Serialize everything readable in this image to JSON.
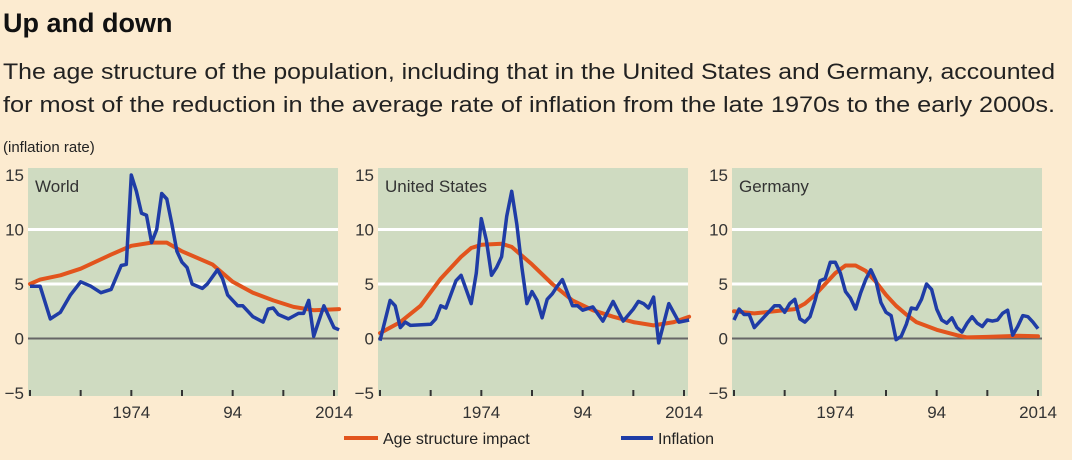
{
  "colors": {
    "background": "#fcebd0",
    "plot": "#cfdbc1",
    "age": "#e2541d",
    "inflation": "#1f3ca6",
    "grid": "#ffffff",
    "zero": "#666666"
  },
  "chart_data": {
    "type": "line",
    "title": "Up and down",
    "subtitle": [
      "The age structure of the population, including that in the United States and Germany, accounted",
      "for most of the reduction in the average rate of inflation from the late 1970s to the early 2000s."
    ],
    "ylabel": "(inflation rate)",
    "ylim": [
      -5,
      15
    ],
    "yticks": [
      "15",
      "10",
      "5",
      "0",
      "−5"
    ],
    "ytick_values": [
      15,
      10,
      5,
      0,
      -5
    ],
    "xlim": [
      1954,
      2015
    ],
    "xtick_years": [
      1954,
      1964,
      1974,
      1984,
      1994,
      2004,
      2014
    ],
    "xtick_labels": [
      {
        "year": 1974,
        "label": "1974"
      },
      {
        "year": 1994,
        "label": "94"
      },
      {
        "year": 2014,
        "label": "2014"
      }
    ],
    "grid": "horizontal at 5 and 10",
    "legend": {
      "placement": "bottom-center",
      "entries": [
        "Age structure impact",
        "Inflation"
      ]
    },
    "panels": [
      {
        "name": "World",
        "age": [
          [
            1954,
            5
          ],
          [
            1956,
            5.4
          ],
          [
            1960,
            5.8
          ],
          [
            1964,
            6.4
          ],
          [
            1970,
            7.7
          ],
          [
            1974,
            8.5
          ],
          [
            1978,
            8.8
          ],
          [
            1981,
            8.8
          ],
          [
            1984,
            8
          ],
          [
            1990,
            6.8
          ],
          [
            1994,
            5.2
          ],
          [
            1998,
            4.2
          ],
          [
            2002,
            3.5
          ],
          [
            2006,
            2.9
          ],
          [
            2010,
            2.6
          ],
          [
            2015,
            2.7
          ]
        ],
        "inflation": [
          [
            1954,
            4.8
          ],
          [
            1956,
            4.8
          ],
          [
            1958,
            1.8
          ],
          [
            1960,
            2.4
          ],
          [
            1962,
            4
          ],
          [
            1964,
            5.2
          ],
          [
            1966,
            4.8
          ],
          [
            1968,
            4.2
          ],
          [
            1970,
            4.5
          ],
          [
            1972,
            6.7
          ],
          [
            1973,
            6.8
          ],
          [
            1974,
            15
          ],
          [
            1975,
            13.5
          ],
          [
            1976,
            11.5
          ],
          [
            1977,
            11.3
          ],
          [
            1978,
            8.8
          ],
          [
            1979,
            10
          ],
          [
            1980,
            13.3
          ],
          [
            1981,
            12.8
          ],
          [
            1982,
            10.5
          ],
          [
            1983,
            8
          ],
          [
            1984,
            7
          ],
          [
            1985,
            6.5
          ],
          [
            1986,
            5
          ],
          [
            1988,
            4.6
          ],
          [
            1989,
            5
          ],
          [
            1991,
            6.3
          ],
          [
            1992,
            5.5
          ],
          [
            1993,
            4
          ],
          [
            1995,
            3
          ],
          [
            1996,
            3
          ],
          [
            1998,
            2
          ],
          [
            2000,
            1.5
          ],
          [
            2001,
            2.7
          ],
          [
            2002,
            2.8
          ],
          [
            2003,
            2.2
          ],
          [
            2005,
            1.8
          ],
          [
            2007,
            2.3
          ],
          [
            2008,
            2.3
          ],
          [
            2009,
            3.5
          ],
          [
            2010,
            0.2
          ],
          [
            2012,
            3
          ],
          [
            2014,
            1
          ],
          [
            2015,
            0.8
          ]
        ]
      },
      {
        "name": "United States",
        "age": [
          [
            1954,
            0.5
          ],
          [
            1958,
            1.5
          ],
          [
            1962,
            3
          ],
          [
            1966,
            5.5
          ],
          [
            1970,
            7.5
          ],
          [
            1972,
            8.3
          ],
          [
            1974,
            8.6
          ],
          [
            1978,
            8.7
          ],
          [
            1980,
            8.4
          ],
          [
            1984,
            6.8
          ],
          [
            1988,
            5
          ],
          [
            1992,
            3.5
          ],
          [
            1996,
            2.6
          ],
          [
            2000,
            2
          ],
          [
            2004,
            1.5
          ],
          [
            2008,
            1.2
          ],
          [
            2012,
            1.5
          ],
          [
            2015,
            2
          ]
        ],
        "inflation": [
          [
            1954,
            -0.2
          ],
          [
            1956,
            3.5
          ],
          [
            1957,
            3
          ],
          [
            1958,
            1
          ],
          [
            1959,
            1.5
          ],
          [
            1960,
            1.2
          ],
          [
            1964,
            1.3
          ],
          [
            1965,
            1.8
          ],
          [
            1966,
            3
          ],
          [
            1967,
            2.8
          ],
          [
            1969,
            5.3
          ],
          [
            1970,
            5.8
          ],
          [
            1972,
            3.2
          ],
          [
            1973,
            6
          ],
          [
            1974,
            11
          ],
          [
            1975,
            9
          ],
          [
            1976,
            5.8
          ],
          [
            1977,
            6.5
          ],
          [
            1978,
            7.5
          ],
          [
            1979,
            11.2
          ],
          [
            1980,
            13.5
          ],
          [
            1981,
            10.5
          ],
          [
            1982,
            6.5
          ],
          [
            1983,
            3.2
          ],
          [
            1984,
            4.3
          ],
          [
            1985,
            3.5
          ],
          [
            1986,
            1.9
          ],
          [
            1987,
            3.6
          ],
          [
            1988,
            4.1
          ],
          [
            1989,
            4.8
          ],
          [
            1990,
            5.4
          ],
          [
            1991,
            4.2
          ],
          [
            1992,
            3
          ],
          [
            1993,
            3
          ],
          [
            1994,
            2.6
          ],
          [
            1996,
            2.9
          ],
          [
            1998,
            1.6
          ],
          [
            2000,
            3.4
          ],
          [
            2002,
            1.6
          ],
          [
            2004,
            2.7
          ],
          [
            2005,
            3.4
          ],
          [
            2006,
            3.2
          ],
          [
            2007,
            2.8
          ],
          [
            2008,
            3.8
          ],
          [
            2009,
            -0.4
          ],
          [
            2011,
            3.2
          ],
          [
            2013,
            1.5
          ],
          [
            2015,
            1.7
          ]
        ]
      },
      {
        "name": "Germany",
        "age": [
          [
            1954,
            2.5
          ],
          [
            1958,
            2.3
          ],
          [
            1962,
            2.5
          ],
          [
            1966,
            2.7
          ],
          [
            1968,
            3.2
          ],
          [
            1970,
            4
          ],
          [
            1972,
            5
          ],
          [
            1974,
            6
          ],
          [
            1976,
            6.7
          ],
          [
            1978,
            6.7
          ],
          [
            1980,
            6.2
          ],
          [
            1982,
            5.2
          ],
          [
            1984,
            4
          ],
          [
            1986,
            3
          ],
          [
            1988,
            2.2
          ],
          [
            1990,
            1.5
          ],
          [
            1994,
            0.8
          ],
          [
            1998,
            0.3
          ],
          [
            2000,
            0.1
          ],
          [
            2004,
            0.15
          ],
          [
            2010,
            0.25
          ],
          [
            2014,
            0.2
          ]
        ],
        "inflation": [
          [
            1954,
            1.7
          ],
          [
            1955,
            2.7
          ],
          [
            1956,
            2.2
          ],
          [
            1957,
            2.2
          ],
          [
            1958,
            1
          ],
          [
            1960,
            2
          ],
          [
            1962,
            3
          ],
          [
            1963,
            3
          ],
          [
            1964,
            2.4
          ],
          [
            1965,
            3.2
          ],
          [
            1966,
            3.6
          ],
          [
            1967,
            1.8
          ],
          [
            1968,
            1.5
          ],
          [
            1969,
            2
          ],
          [
            1970,
            3.5
          ],
          [
            1971,
            5.3
          ],
          [
            1972,
            5.5
          ],
          [
            1973,
            7
          ],
          [
            1974,
            7
          ],
          [
            1975,
            6
          ],
          [
            1976,
            4.3
          ],
          [
            1977,
            3.7
          ],
          [
            1978,
            2.7
          ],
          [
            1979,
            4.2
          ],
          [
            1980,
            5.4
          ],
          [
            1981,
            6.3
          ],
          [
            1982,
            5.3
          ],
          [
            1983,
            3.3
          ],
          [
            1984,
            2.4
          ],
          [
            1985,
            2.1
          ],
          [
            1986,
            -0.1
          ],
          [
            1987,
            0.2
          ],
          [
            1988,
            1.3
          ],
          [
            1989,
            2.8
          ],
          [
            1990,
            2.7
          ],
          [
            1991,
            3.6
          ],
          [
            1992,
            5
          ],
          [
            1993,
            4.5
          ],
          [
            1994,
            2.7
          ],
          [
            1995,
            1.7
          ],
          [
            1996,
            1.4
          ],
          [
            1997,
            1.9
          ],
          [
            1998,
            1
          ],
          [
            1999,
            0.6
          ],
          [
            2000,
            1.4
          ],
          [
            2001,
            2
          ],
          [
            2002,
            1.4
          ],
          [
            2003,
            1.1
          ],
          [
            2004,
            1.7
          ],
          [
            2005,
            1.6
          ],
          [
            2006,
            1.7
          ],
          [
            2007,
            2.3
          ],
          [
            2008,
            2.6
          ],
          [
            2009,
            0.3
          ],
          [
            2010,
            1.1
          ],
          [
            2011,
            2.1
          ],
          [
            2012,
            2
          ],
          [
            2013,
            1.5
          ],
          [
            2014,
            0.9
          ]
        ]
      }
    ]
  }
}
